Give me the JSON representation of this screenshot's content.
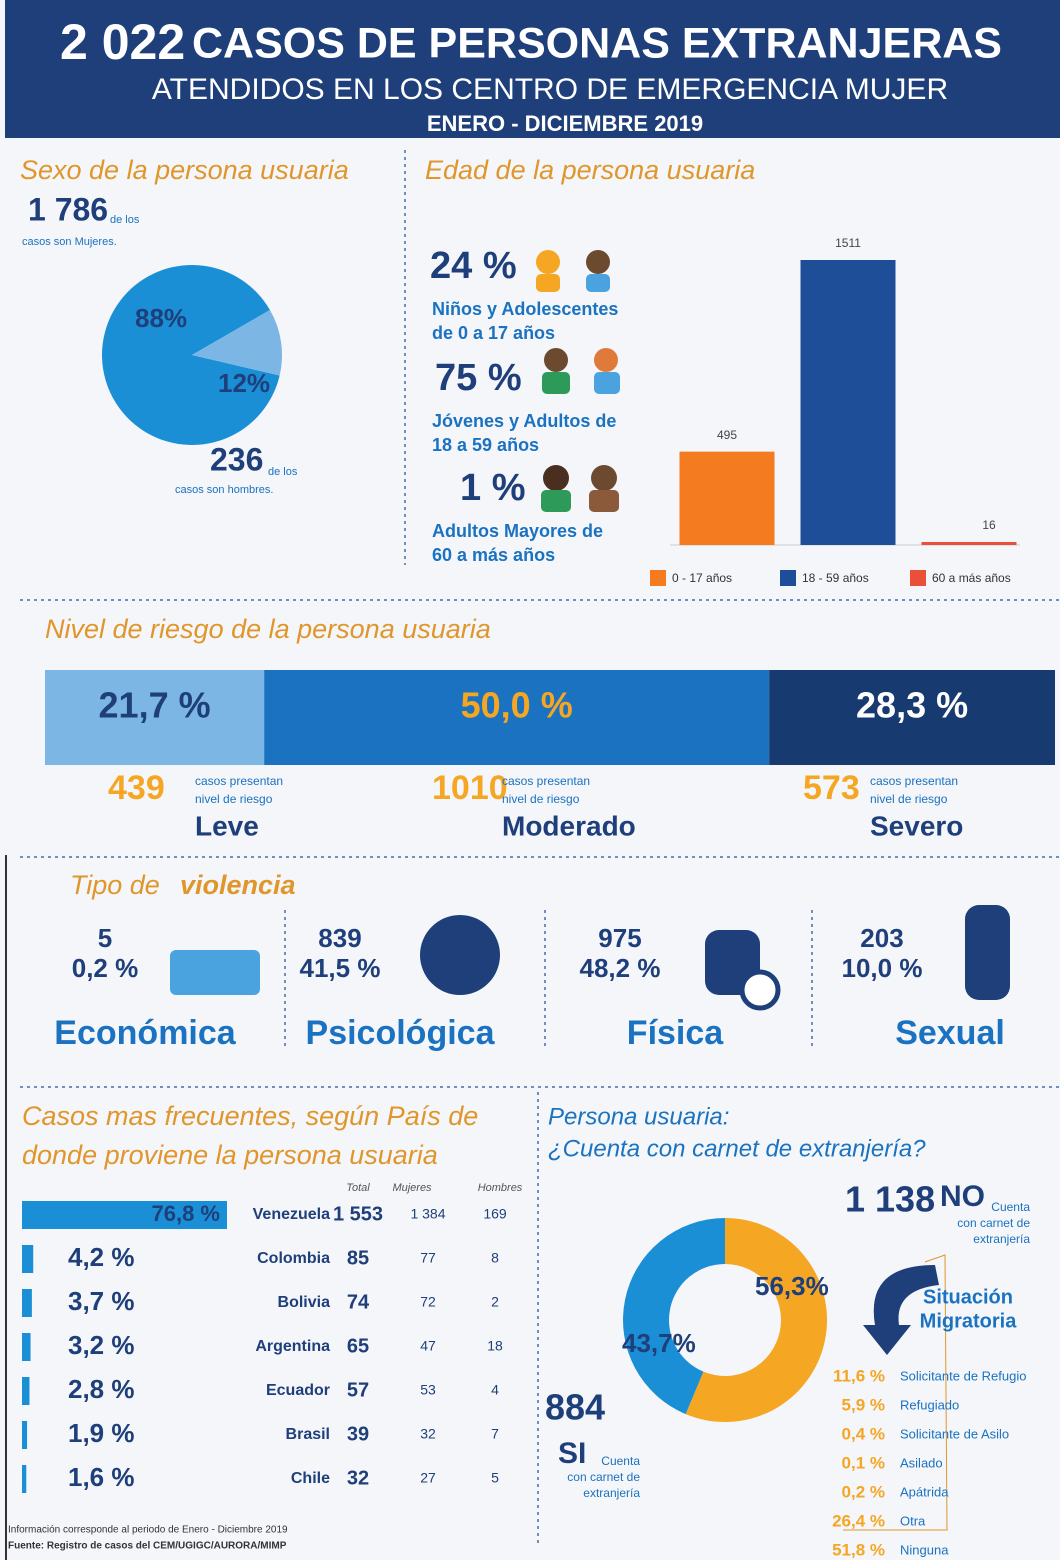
{
  "header": {
    "total": "2 022",
    "title": "CASOS DE PERSONAS EXTRANJERAS",
    "subtitle": "ATENDIDOS EN LOS CENTRO DE EMERGENCIA MUJER",
    "period": "ENERO - DICIEMBRE 2019"
  },
  "sex": {
    "title": "Sexo de la persona usuaria",
    "women": {
      "count": "1 786",
      "text_1": "de los",
      "text_2": "casos son Mujeres."
    },
    "men": {
      "count": "236",
      "text_1": "de los",
      "text_2": "casos son hombres."
    },
    "chart": {
      "type": "pie",
      "values": [
        88,
        12
      ],
      "value_labels": [
        "88%",
        "12%"
      ],
      "colors": [
        "#1a8fd6",
        "#7cb6e4"
      ]
    }
  },
  "age": {
    "title": "Edad de la persona usuaria",
    "groups": [
      {
        "pct": "24 %",
        "label_1": "Niños y Adolescentes",
        "label_2": "de 0 a 17 años"
      },
      {
        "pct": "75 %",
        "label_1": "Jóvenes y Adultos de",
        "label_2": "18 a 59 años"
      },
      {
        "pct": "1 %",
        "label_1": "Adultos Mayores de",
        "label_2": "60 a más años"
      }
    ],
    "chart": {
      "type": "bar",
      "categories": [
        "0 - 17 años",
        "18 - 59 años",
        "60 a más años"
      ],
      "values": [
        495,
        1511,
        16
      ],
      "colors": [
        "#f47b20",
        "#1f4e99",
        "#e8503a"
      ]
    }
  },
  "risk": {
    "title": "Nivel de riesgo de la persona usuaria",
    "chart": {
      "type": "stacked-bar",
      "values": [
        21.7,
        50.0,
        28.3
      ],
      "value_labels": [
        "21,7 %",
        "50,0 %",
        "28,3 %"
      ],
      "colors": [
        "#7cb6e4",
        "#1a72c0",
        "#173a70"
      ],
      "label_colors": [
        "#1e3f7a",
        "#f5a623",
        "#ffffff"
      ]
    },
    "counts": [
      "439",
      "1010",
      "573"
    ],
    "count_text_1": "casos presentan",
    "count_text_2": "nivel de riesgo",
    "levels": [
      "Leve",
      "Moderado",
      "Severo"
    ]
  },
  "violence": {
    "title_1": "Tipo de",
    "title_2": "violencia",
    "items": [
      {
        "count": "5",
        "pct": "0,2 %",
        "name": "Económica"
      },
      {
        "count": "839",
        "pct": "41,5 %",
        "name": "Psicológica"
      },
      {
        "count": "975",
        "pct": "48,2 %",
        "name": "Física"
      },
      {
        "count": "203",
        "pct": "10,0 %",
        "name": "Sexual"
      }
    ]
  },
  "countries": {
    "title_1": "Casos mas frecuentes, según País de",
    "title_2": "donde proviene la persona usuaria",
    "headers": [
      "Total",
      "Mujeres",
      "Hombres"
    ],
    "chart": {
      "type": "bar",
      "values": [
        76.8,
        4.2,
        3.7,
        3.2,
        2.8,
        1.9,
        1.6
      ],
      "value_labels": [
        "76,8 %",
        "4,2 %",
        "3,7 %",
        "3,2 %",
        "2,8 %",
        "1,9 %",
        "1,6 %"
      ],
      "color": "#1a8fd6"
    },
    "rows": [
      [
        "Venezuela",
        "1 553",
        "1 384",
        "169"
      ],
      [
        "Colombia",
        "85",
        "77",
        "8"
      ],
      [
        "Bolivia",
        "74",
        "72",
        "2"
      ],
      [
        "Argentina",
        "65",
        "47",
        "18"
      ],
      [
        "Ecuador",
        "57",
        "53",
        "4"
      ],
      [
        "Brasil",
        "39",
        "32",
        "7"
      ],
      [
        "Chile",
        "32",
        "27",
        "5"
      ]
    ]
  },
  "carnet": {
    "title": "Persona usuaria:",
    "question": "¿Cuenta con carnet de extranjería?",
    "chart": {
      "type": "donut",
      "values": [
        56.3,
        43.7
      ],
      "value_labels": [
        "56,3%",
        "43,7%"
      ],
      "colors": [
        "#f5a623",
        "#1a8fd6"
      ]
    },
    "no": {
      "count": "1 138",
      "answer": "NO",
      "text_1": "Cuenta",
      "text_2": "con carnet de",
      "text_3": "extranjería"
    },
    "si": {
      "count": "884",
      "answer": "SI",
      "text_1": "Cuenta",
      "text_2": "con carnet de",
      "text_3": "extranjería"
    },
    "situation_1": "Situación",
    "situation_2": "Migratoria",
    "statuses": [
      {
        "pct": "11,6 %",
        "label": "Solicitante de Refugio"
      },
      {
        "pct": "5,9 %",
        "label": "Refugiado"
      },
      {
        "pct": "0,4 %",
        "label": "Solicitante de Asilo"
      },
      {
        "pct": "0,1 %",
        "label": "Asilado"
      },
      {
        "pct": "0,2 %",
        "label": "Apátrida"
      },
      {
        "pct": "26,4 %",
        "label": "Otra"
      },
      {
        "pct": "51,8 %",
        "label": "Ninguna"
      }
    ]
  },
  "footer": {
    "note": "Información corresponde al periodo de Enero - Diciembre 2019",
    "source": "Fuente: Registro de casos del CEM/UGIGC/AURORA/MIMP"
  }
}
